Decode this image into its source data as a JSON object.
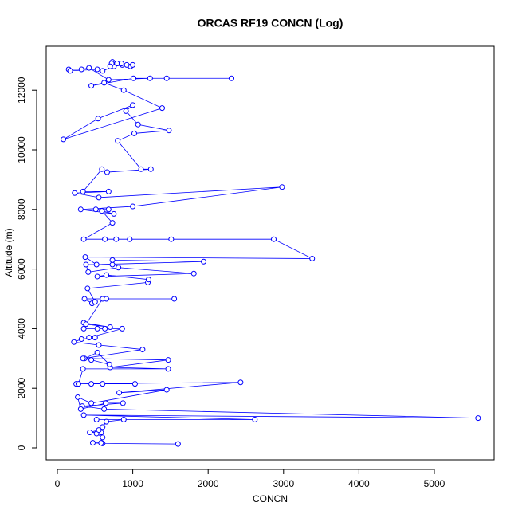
{
  "chart_data": {
    "type": "scatter",
    "line": true,
    "title": "ORCAS RF19 CONCN (Log)",
    "x_label": "CONCN",
    "y_label": "Altitude (m)",
    "color": "#0000ff",
    "x": [
      1600,
      600,
      470,
      580,
      600,
      520,
      580,
      430,
      550,
      600,
      650,
      880,
      520,
      2620,
      350,
      5580,
      620,
      330,
      870,
      640,
      310,
      270,
      450,
      1450,
      820,
      2430,
      250,
      1030,
      600,
      450,
      280,
      340,
      1470,
      700,
      1470,
      360,
      530,
      690,
      450,
      340,
      1130,
      550,
      220,
      320,
      500,
      420,
      860,
      630,
      530,
      350,
      350,
      700,
      380,
      600,
      1550,
      650,
      360,
      460,
      500,
      400,
      1200,
      1210,
      650,
      530,
      1810,
      810,
      410,
      380,
      730,
      730,
      1940,
      520,
      370,
      3380,
      2870,
      960,
      1510,
      780,
      630,
      350,
      730,
      590,
      680,
      510,
      750,
      310,
      1000,
      2980,
      550,
      230,
      680,
      340,
      590,
      660,
      1240,
      1110,
      800,
      1020,
      1480,
      1070,
      910,
      1000,
      540,
      80,
      1390,
      880,
      620,
      450,
      1010,
      2310,
      1450,
      1230,
      680,
      420,
      320,
      150,
      170,
      530,
      600,
      750,
      730,
      790,
      860,
      970,
      1000,
      850,
      720,
      700,
      920
    ],
    "y": [
      130,
      150,
      170,
      170,
      350,
      480,
      520,
      520,
      600,
      700,
      880,
      950,
      950,
      950,
      1100,
      1000,
      1300,
      1400,
      1500,
      1500,
      1300,
      1700,
      1500,
      1950,
      1850,
      2200,
      2150,
      2150,
      2150,
      2150,
      2150,
      2650,
      2650,
      2700,
      2950,
      3000,
      3200,
      2800,
      2950,
      3000,
      3300,
      3450,
      3550,
      3650,
      3700,
      3700,
      4000,
      4000,
      4000,
      4000,
      4200,
      4050,
      4150,
      5000,
      5000,
      5000,
      5000,
      4850,
      4900,
      5350,
      5550,
      5650,
      5800,
      5750,
      5850,
      6050,
      5900,
      6150,
      6150,
      6300,
      6250,
      6150,
      6400,
      6350,
      7000,
      7000,
      7000,
      7000,
      7000,
      7000,
      7550,
      7950,
      8000,
      8000,
      7850,
      8000,
      8100,
      8750,
      8400,
      8550,
      8600,
      8600,
      9350,
      9250,
      9350,
      9350,
      10300,
      10550,
      10650,
      10850,
      11300,
      11500,
      11050,
      10350,
      11400,
      12000,
      12250,
      12150,
      12400,
      12400,
      12400,
      12400,
      12350,
      12750,
      12700,
      12700,
      12650,
      12700,
      12650,
      12800,
      12950,
      12900,
      12850,
      12800,
      12850,
      12900,
      12900,
      12800,
      12850
    ],
    "xlim": [
      -148,
      5793
    ],
    "ylim": [
      -401,
      13476
    ],
    "xticks": [
      0,
      1000,
      2000,
      3000,
      4000,
      5000
    ],
    "yticks": [
      0,
      2000,
      4000,
      6000,
      8000,
      10000,
      12000
    ]
  }
}
